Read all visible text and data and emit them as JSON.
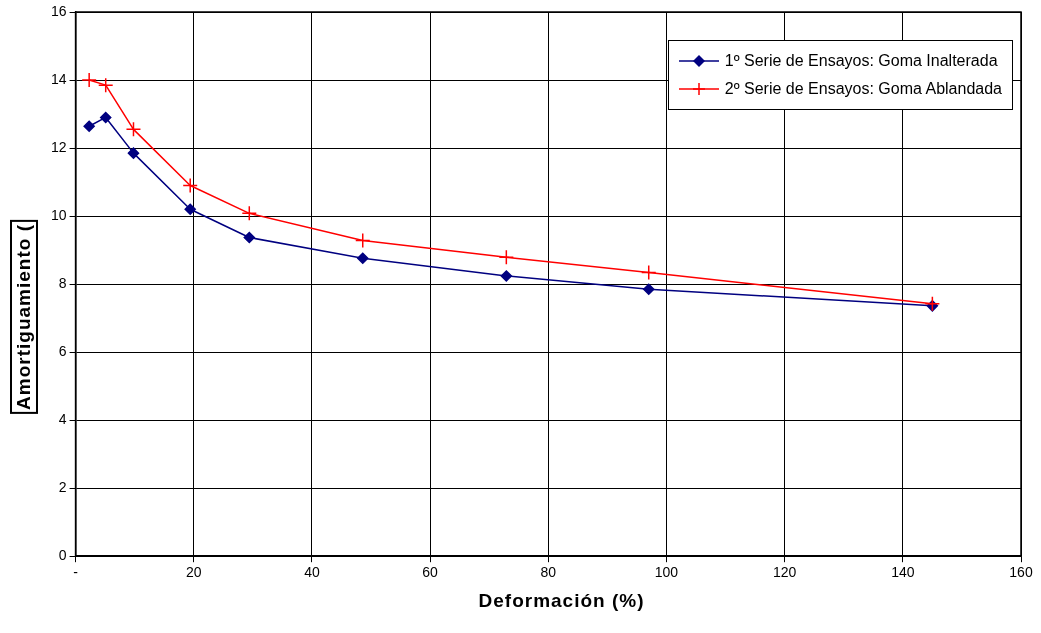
{
  "chart_data": {
    "type": "line",
    "xlabel": "Deformación (%)",
    "ylabel": "Amortiguamiento (",
    "xlim": [
      0,
      160
    ],
    "xticks": [
      {
        "value": 0,
        "label": "-"
      },
      20,
      40,
      60,
      80,
      100,
      120,
      140,
      160
    ],
    "ylim": [
      0,
      16
    ],
    "yticks": [
      0,
      2,
      4,
      6,
      8,
      10,
      12,
      14,
      16
    ],
    "grid": true,
    "legend": "top right",
    "series": [
      {
        "name": "1º Serie de Ensayos: Goma Inalterada",
        "color": "#000080",
        "marker": "diamond",
        "x": [
          2.3,
          5.1,
          9.8,
          19.4,
          29.4,
          48.6,
          72.9,
          97,
          145
        ],
        "values": [
          12.64,
          12.9,
          11.85,
          10.2,
          9.37,
          8.76,
          8.24,
          7.85,
          7.36
        ]
      },
      {
        "name": "2º Serie de Ensayos: Goma Ablandada",
        "color": "#ff0000",
        "marker": "cross",
        "x": [
          2.3,
          5.1,
          9.8,
          19.4,
          29.4,
          48.6,
          72.9,
          97,
          145
        ],
        "values": [
          14.0,
          13.85,
          12.55,
          10.9,
          10.08,
          9.28,
          8.79,
          8.34,
          7.42
        ]
      }
    ]
  }
}
